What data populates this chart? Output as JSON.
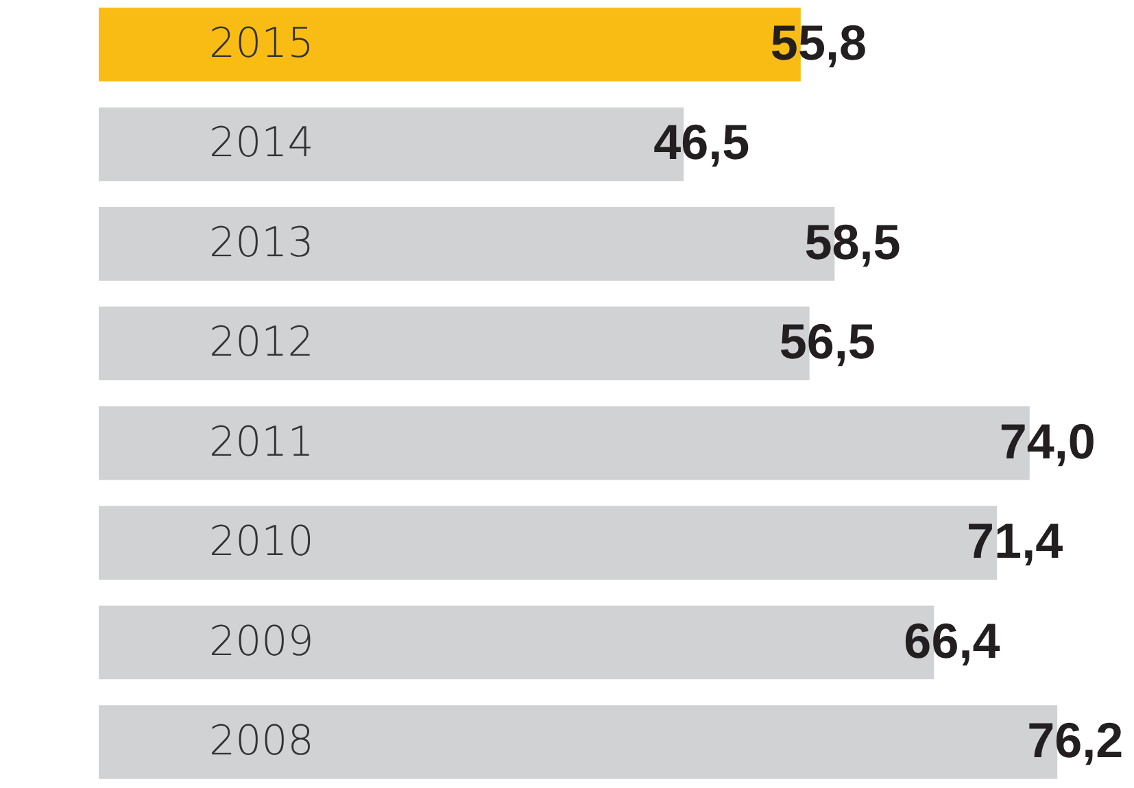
{
  "chart_data": {
    "type": "bar",
    "orientation": "horizontal",
    "categories": [
      "2015",
      "2014",
      "2013",
      "2012",
      "2011",
      "2010",
      "2009",
      "2008"
    ],
    "values": [
      55.8,
      46.5,
      58.5,
      56.5,
      74.0,
      71.4,
      66.4,
      76.2
    ],
    "colors": [
      "#f9bc15",
      "#d1d2d4",
      "#d1d2d4",
      "#d1d2d4",
      "#d1d2d4",
      "#d1d2d4",
      "#d1d2d4",
      "#d1d2d4"
    ],
    "value_labels": [
      "55,8",
      "46,5",
      "58,5",
      "56,5",
      "74,0",
      "71,4",
      "66,4",
      "76,2"
    ]
  }
}
